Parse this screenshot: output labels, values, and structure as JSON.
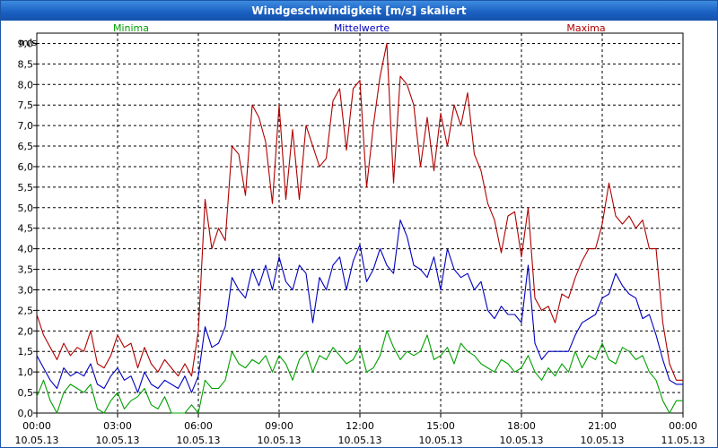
{
  "window": {
    "title": "Windgeschwindigkeit [m/s] skaliert"
  },
  "chart_data": {
    "type": "line",
    "title": "Windgeschwindigkeit [m/s] skaliert",
    "ylabel": "m/s",
    "ylim": [
      0,
      9.25
    ],
    "yticks": [
      "0,0",
      "0,5",
      "1,0",
      "1,5",
      "2,0",
      "2,5",
      "3,0",
      "3,5",
      "4,0",
      "4,5",
      "5,0",
      "5,5",
      "6,0",
      "6,5",
      "7,0",
      "7,5",
      "8,0",
      "8,5",
      "9,0"
    ],
    "xticks": [
      {
        "time": "00:00",
        "date": "10.05.13"
      },
      {
        "time": "03:00",
        "date": "10.05.13"
      },
      {
        "time": "06:00",
        "date": "10.05.13"
      },
      {
        "time": "09:00",
        "date": "10.05.13"
      },
      {
        "time": "12:00",
        "date": "10.05.13"
      },
      {
        "time": "15:00",
        "date": "10.05.13"
      },
      {
        "time": "18:00",
        "date": "10.05.13"
      },
      {
        "time": "21:00",
        "date": "10.05.13"
      },
      {
        "time": "00:00",
        "date": "11.05.13"
      }
    ],
    "x_hours": [
      0,
      0.25,
      0.5,
      0.75,
      1,
      1.25,
      1.5,
      1.75,
      2,
      2.25,
      2.5,
      2.75,
      3,
      3.25,
      3.5,
      3.75,
      4,
      4.25,
      4.5,
      4.75,
      5,
      5.25,
      5.5,
      5.75,
      6,
      6.25,
      6.5,
      6.75,
      7,
      7.25,
      7.5,
      7.75,
      8,
      8.25,
      8.5,
      8.75,
      9,
      9.25,
      9.5,
      9.75,
      10,
      10.25,
      10.5,
      10.75,
      11,
      11.25,
      11.5,
      11.75,
      12,
      12.25,
      12.5,
      12.75,
      13,
      13.25,
      13.5,
      13.75,
      14,
      14.25,
      14.5,
      14.75,
      15,
      15.25,
      15.5,
      15.75,
      16,
      16.25,
      16.5,
      16.75,
      17,
      17.25,
      17.5,
      17.75,
      18,
      18.25,
      18.5,
      18.75,
      19,
      19.25,
      19.5,
      19.75,
      20,
      20.25,
      20.5,
      20.75,
      21,
      21.25,
      21.5,
      21.75,
      22,
      22.25,
      22.5,
      22.75,
      23,
      23.25,
      23.5,
      23.75,
      24
    ],
    "legend": [
      "Minima",
      "Mittelwerte",
      "Maxima"
    ],
    "series": [
      {
        "name": "Minima",
        "color": "#00a000",
        "values": [
          0.4,
          0.8,
          0.3,
          0.0,
          0.5,
          0.7,
          0.6,
          0.5,
          0.7,
          0.1,
          0.0,
          0.3,
          0.5,
          0.1,
          0.3,
          0.4,
          0.6,
          0.2,
          0.1,
          0.4,
          0.0,
          0.0,
          0.0,
          0.2,
          0.0,
          0.8,
          0.6,
          0.6,
          0.8,
          1.5,
          1.2,
          1.1,
          1.3,
          1.2,
          1.4,
          1.0,
          1.4,
          1.2,
          0.8,
          1.3,
          1.5,
          1.0,
          1.4,
          1.3,
          1.6,
          1.4,
          1.2,
          1.3,
          1.6,
          1.0,
          1.1,
          1.4,
          2.0,
          1.6,
          1.3,
          1.5,
          1.4,
          1.5,
          1.9,
          1.3,
          1.4,
          1.6,
          1.2,
          1.7,
          1.5,
          1.4,
          1.2,
          1.1,
          1.0,
          1.3,
          1.2,
          1.0,
          1.1,
          1.4,
          1.0,
          0.8,
          1.1,
          0.9,
          1.2,
          1.0,
          1.5,
          1.1,
          1.4,
          1.3,
          1.7,
          1.3,
          1.2,
          1.6,
          1.5,
          1.3,
          1.4,
          1.0,
          0.8,
          0.3,
          0.0,
          0.3,
          0.3
        ]
      },
      {
        "name": "Mittelwerte",
        "color": "#0000c0",
        "values": [
          1.4,
          1.1,
          0.8,
          0.6,
          1.1,
          0.9,
          1.0,
          0.9,
          1.2,
          0.7,
          0.6,
          0.9,
          1.1,
          0.8,
          0.9,
          0.5,
          1.0,
          0.7,
          0.6,
          0.8,
          0.7,
          0.6,
          0.9,
          0.5,
          0.9,
          2.1,
          1.6,
          1.7,
          2.1,
          3.3,
          3.0,
          2.8,
          3.5,
          3.1,
          3.6,
          3.0,
          3.8,
          3.2,
          3.0,
          3.6,
          3.4,
          2.2,
          3.3,
          3.0,
          3.6,
          3.8,
          3.0,
          3.7,
          4.1,
          3.2,
          3.5,
          4.0,
          3.6,
          3.4,
          4.7,
          4.3,
          3.6,
          3.5,
          3.3,
          3.8,
          3.0,
          4.0,
          3.5,
          3.3,
          3.4,
          3.0,
          3.2,
          2.5,
          2.3,
          2.6,
          2.4,
          2.4,
          2.2,
          3.6,
          1.7,
          1.3,
          1.5,
          1.5,
          1.5,
          1.5,
          1.9,
          2.2,
          2.3,
          2.4,
          2.8,
          2.9,
          3.4,
          3.1,
          2.9,
          2.8,
          2.3,
          2.4,
          1.9,
          1.3,
          0.8,
          0.7,
          0.7
        ]
      },
      {
        "name": "Maxima",
        "color": "#b00000",
        "values": [
          2.4,
          1.9,
          1.6,
          1.3,
          1.7,
          1.4,
          1.6,
          1.5,
          2.0,
          1.2,
          1.1,
          1.4,
          1.9,
          1.6,
          1.7,
          1.1,
          1.6,
          1.2,
          1.0,
          1.3,
          1.1,
          0.9,
          1.2,
          0.9,
          2.0,
          5.2,
          4.0,
          4.5,
          4.2,
          6.5,
          6.3,
          5.3,
          7.5,
          7.2,
          6.6,
          5.1,
          7.5,
          5.2,
          6.9,
          5.2,
          7.0,
          6.5,
          6.0,
          6.2,
          7.6,
          7.9,
          6.4,
          7.9,
          8.1,
          5.5,
          7.0,
          8.2,
          9.0,
          5.6,
          8.2,
          8.0,
          7.5,
          6.0,
          7.2,
          5.9,
          7.3,
          6.5,
          7.5,
          7.0,
          7.8,
          6.3,
          5.9,
          5.1,
          4.7,
          3.9,
          4.8,
          4.9,
          3.8,
          5.0,
          2.8,
          2.5,
          2.6,
          2.2,
          2.9,
          2.8,
          3.3,
          3.7,
          4.0,
          4.0,
          4.6,
          5.6,
          4.8,
          4.6,
          4.8,
          4.5,
          4.7,
          4.0,
          4.0,
          2.2,
          1.2,
          0.8,
          0.8
        ]
      }
    ]
  }
}
